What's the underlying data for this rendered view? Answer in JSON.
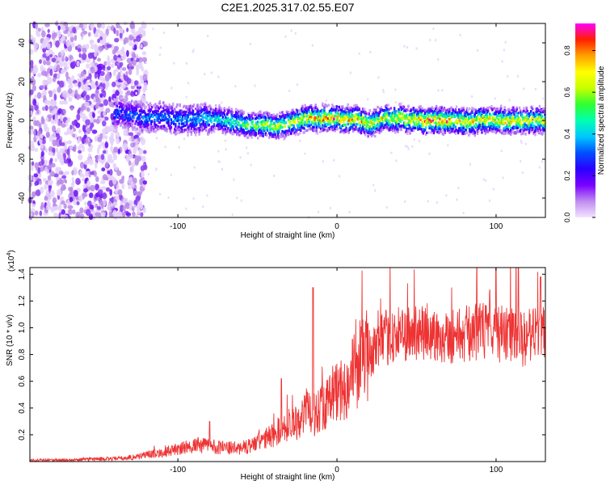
{
  "title": "C2E1.2025.317.02.55.E07",
  "chart_data": [
    {
      "type": "heatmap",
      "title": "C2E1.2025.317.02.55.E07",
      "xlabel": "Height of straight line (km)",
      "ylabel": "Frequency (Hz)",
      "xlim": [
        -193,
        131
      ],
      "ylim": [
        -50,
        50
      ],
      "xticks": [
        -100,
        0,
        100
      ],
      "xtick_labels": [
        "-100",
        "0",
        "100"
      ],
      "yticks": [
        -40,
        -20,
        0,
        20,
        40
      ],
      "ytick_labels": [
        "-40",
        "-20",
        "0",
        "20",
        "40"
      ],
      "colorbar": {
        "label": "Normalized spectral amplitude",
        "range": [
          0.0,
          0.93
        ],
        "ticks": [
          0.0,
          0.2,
          0.4,
          0.6,
          0.8
        ],
        "tick_labels": [
          "0.0",
          "0.2",
          "0.4",
          "0.6",
          "0.8"
        ],
        "colormap": [
          "#f2e4ff",
          "#c08cf0",
          "#7a00ff",
          "#2a00ff",
          "#0050ff",
          "#00c8ff",
          "#00ffb0",
          "#30ff30",
          "#c8ff00",
          "#ffff00",
          "#ffa000",
          "#ff2000",
          "#ff00ff"
        ]
      },
      "signal_track": {
        "heights_km": [
          -140,
          -130,
          -120,
          -110,
          -100,
          -90,
          -80,
          -70,
          -60,
          -50,
          -40,
          -30,
          -20,
          -10,
          0,
          10,
          20,
          30,
          40,
          50,
          60,
          70,
          80,
          90,
          100,
          110,
          120,
          131
        ],
        "frequency_hz": [
          4,
          3,
          1,
          2,
          0,
          1,
          1,
          0,
          -2,
          -2,
          -3,
          -2,
          1,
          1,
          1,
          1,
          -2,
          1,
          1,
          0,
          0,
          0,
          -1,
          0,
          0,
          0,
          0,
          0
        ],
        "peak_amplitude": [
          0.32,
          0.36,
          0.38,
          0.38,
          0.4,
          0.42,
          0.46,
          0.55,
          0.6,
          0.65,
          0.72,
          0.7,
          0.8,
          0.85,
          0.88,
          0.85,
          0.8,
          0.72,
          0.8,
          0.85,
          0.88,
          0.85,
          0.85,
          0.8,
          0.78,
          0.8,
          0.75,
          0.78
        ]
      },
      "noise_region_below_km": -130
    },
    {
      "type": "line",
      "xlabel": "Height of straight line (km)",
      "ylabel": "SNR (10 * v/v)",
      "y_multiplier": "(x10",
      "y_multiplier_exp": "4",
      "y_multiplier_close": ")",
      "xlim": [
        -193,
        131
      ],
      "ylim": [
        0.0,
        1.45
      ],
      "xticks": [
        -100,
        0,
        100
      ],
      "xtick_labels": [
        "-100",
        "0",
        "100"
      ],
      "yticks": [
        0.2,
        0.4,
        0.6,
        0.8,
        1.0,
        1.2,
        1.4
      ],
      "ytick_labels": [
        "0.2",
        "0.4",
        "0.6",
        "0.8",
        "1.0",
        "1.2",
        "1.4"
      ],
      "series": [
        {
          "name": "SNR",
          "color": "#ee3333",
          "x": [
            -193,
            -180,
            -170,
            -160,
            -150,
            -140,
            -130,
            -120,
            -110,
            -100,
            -90,
            -80,
            -70,
            -60,
            -50,
            -40,
            -30,
            -25,
            -20,
            -15,
            -10,
            -5,
            0,
            5,
            10,
            15,
            20,
            25,
            30,
            40,
            50,
            60,
            70,
            80,
            90,
            100,
            110,
            120,
            125,
            131
          ],
          "y": [
            0.01,
            0.01,
            0.01,
            0.015,
            0.02,
            0.02,
            0.03,
            0.05,
            0.07,
            0.09,
            0.12,
            0.12,
            0.1,
            0.1,
            0.14,
            0.2,
            0.28,
            0.3,
            0.38,
            0.34,
            0.42,
            0.45,
            0.52,
            0.55,
            0.66,
            0.76,
            0.8,
            0.86,
            0.92,
            0.95,
            0.96,
            0.94,
            0.94,
            0.95,
            0.98,
            0.96,
            0.94,
            0.9,
            0.96,
            1.0
          ]
        }
      ],
      "peaks": [
        {
          "x": -15,
          "y": 1.3
        },
        {
          "x": -35,
          "y": 0.62
        },
        {
          "x": -80,
          "y": 0.3
        },
        {
          "x": 100,
          "y": 1.47
        },
        {
          "x": 114,
          "y": 1.45
        },
        {
          "x": 128,
          "y": 1.38
        }
      ]
    }
  ]
}
